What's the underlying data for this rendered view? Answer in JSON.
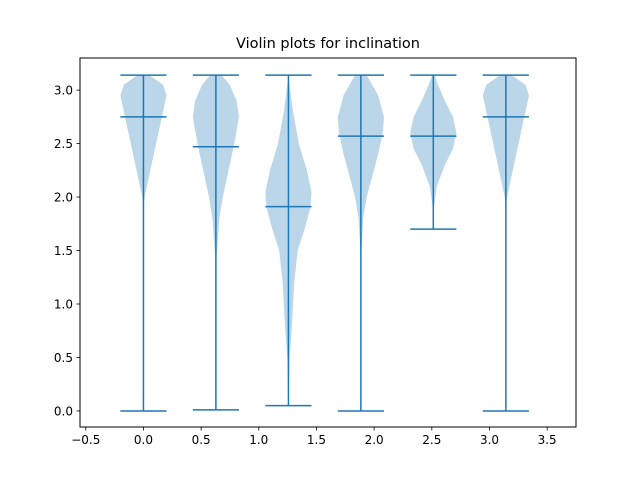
{
  "chart_data": {
    "type": "violin",
    "title": "Violin plots for inclination",
    "xlabel": "",
    "ylabel": "",
    "xlim": [
      -0.55,
      3.75
    ],
    "ylim": [
      -0.15,
      3.3
    ],
    "xticks": [
      -0.5,
      0.0,
      0.5,
      1.0,
      1.5,
      2.0,
      2.5,
      3.0,
      3.5
    ],
    "xtick_labels": [
      "−0.5",
      "0.0",
      "0.5",
      "1.0",
      "1.5",
      "2.0",
      "2.5",
      "3.0",
      "3.5"
    ],
    "yticks": [
      0.0,
      0.5,
      1.0,
      1.5,
      2.0,
      2.5,
      3.0
    ],
    "ytick_labels": [
      "0.0",
      "0.5",
      "1.0",
      "1.5",
      "2.0",
      "2.5",
      "3.0"
    ],
    "grid": false,
    "colors": {
      "body": "#1f77b4",
      "body_opacity": 0.3,
      "lines": "#1f77b4"
    },
    "violins": [
      {
        "position": 0.0,
        "min": 0.0,
        "max": 3.14,
        "mean": 2.75,
        "halfwidth": 0.2,
        "profile": [
          [
            0.0,
            0
          ],
          [
            1.9,
            0
          ],
          [
            2.0,
            0.01
          ],
          [
            2.2,
            0.05
          ],
          [
            2.4,
            0.09
          ],
          [
            2.6,
            0.13
          ],
          [
            2.8,
            0.17
          ],
          [
            2.95,
            0.2
          ],
          [
            3.05,
            0.17
          ],
          [
            3.14,
            0.05
          ]
        ]
      },
      {
        "position": 0.628,
        "min": 0.01,
        "max": 3.14,
        "mean": 2.47,
        "halfwidth": 0.2,
        "profile": [
          [
            0.01,
            0
          ],
          [
            1.35,
            0
          ],
          [
            1.5,
            0.01
          ],
          [
            1.8,
            0.03
          ],
          [
            2.0,
            0.06
          ],
          [
            2.2,
            0.1
          ],
          [
            2.5,
            0.16
          ],
          [
            2.75,
            0.2
          ],
          [
            2.9,
            0.18
          ],
          [
            3.05,
            0.12
          ],
          [
            3.14,
            0.05
          ]
        ]
      },
      {
        "position": 1.257,
        "min": 0.05,
        "max": 3.14,
        "mean": 1.91,
        "halfwidth": 0.2,
        "profile": [
          [
            0.05,
            0
          ],
          [
            0.25,
            0.005
          ],
          [
            0.5,
            0.01
          ],
          [
            0.8,
            0.03
          ],
          [
            1.2,
            0.05
          ],
          [
            1.5,
            0.08
          ],
          [
            1.7,
            0.14
          ],
          [
            1.9,
            0.19
          ],
          [
            2.05,
            0.2
          ],
          [
            2.25,
            0.16
          ],
          [
            2.5,
            0.09
          ],
          [
            2.8,
            0.04
          ],
          [
            3.0,
            0.015
          ],
          [
            3.14,
            0
          ]
        ]
      },
      {
        "position": 1.885,
        "min": 0.0,
        "max": 3.14,
        "mean": 2.57,
        "halfwidth": 0.2,
        "profile": [
          [
            0.0,
            0
          ],
          [
            1.3,
            0
          ],
          [
            1.5,
            0.005
          ],
          [
            1.8,
            0.02
          ],
          [
            2.0,
            0.05
          ],
          [
            2.2,
            0.1
          ],
          [
            2.4,
            0.15
          ],
          [
            2.6,
            0.19
          ],
          [
            2.75,
            0.2
          ],
          [
            2.95,
            0.15
          ],
          [
            3.14,
            0.05
          ]
        ]
      },
      {
        "position": 2.513,
        "min": 1.7,
        "max": 3.14,
        "mean": 2.57,
        "halfwidth": 0.2,
        "profile": [
          [
            1.7,
            0
          ],
          [
            1.9,
            0.005
          ],
          [
            2.1,
            0.03
          ],
          [
            2.3,
            0.1
          ],
          [
            2.45,
            0.17
          ],
          [
            2.6,
            0.2
          ],
          [
            2.75,
            0.17
          ],
          [
            2.9,
            0.1
          ],
          [
            3.05,
            0.04
          ],
          [
            3.14,
            0.01
          ]
        ]
      },
      {
        "position": 3.142,
        "min": 0.0,
        "max": 3.14,
        "mean": 2.75,
        "halfwidth": 0.2,
        "profile": [
          [
            0.0,
            0
          ],
          [
            1.9,
            0
          ],
          [
            2.0,
            0.01
          ],
          [
            2.2,
            0.05
          ],
          [
            2.4,
            0.09
          ],
          [
            2.6,
            0.13
          ],
          [
            2.8,
            0.17
          ],
          [
            2.95,
            0.2
          ],
          [
            3.05,
            0.17
          ],
          [
            3.14,
            0.05
          ]
        ]
      }
    ]
  }
}
